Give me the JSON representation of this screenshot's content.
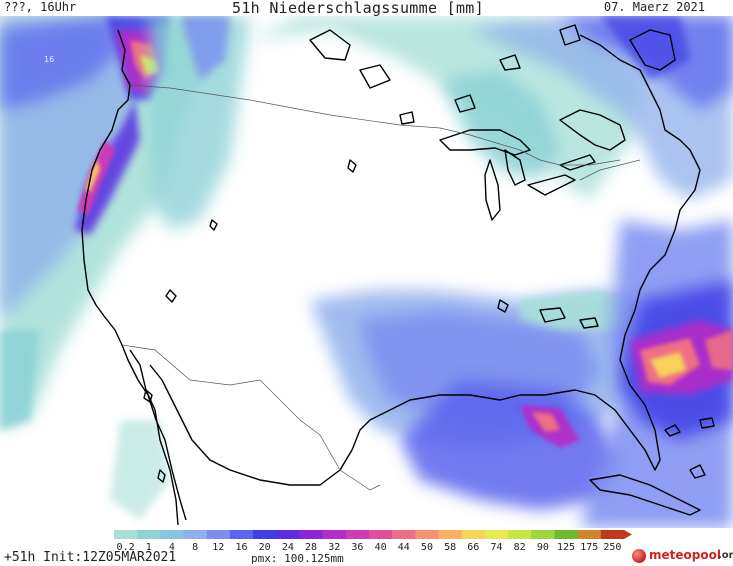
{
  "header": {
    "left": "???, 16Uhr",
    "title": "51h Niederschlagssumme [mm]",
    "date": "07. Maerz 2021"
  },
  "map": {
    "region": "North America",
    "ocean_label": "16"
  },
  "legend": {
    "ticks": [
      "0.2",
      "1",
      "4",
      "8",
      "12",
      "16",
      "20",
      "24",
      "28",
      "32",
      "36",
      "40",
      "44",
      "50",
      "58",
      "66",
      "74",
      "82",
      "90",
      "125",
      "175",
      "250"
    ],
    "colors": [
      "#a8e0d8",
      "#8fd3d6",
      "#89c4e3",
      "#8fb0ec",
      "#7b8ef0",
      "#5a64ee",
      "#3f3fe6",
      "#5a2ee0",
      "#8f24d8",
      "#b52ac8",
      "#cf3bb5",
      "#e04f9c",
      "#ee6f85",
      "#f79172",
      "#fbb163",
      "#f7d35a",
      "#e9e94e",
      "#c6e443",
      "#9ed63b",
      "#6fb92f",
      "#d0842c",
      "#c0391e"
    ]
  },
  "footer": {
    "run_info": "+51h Init:12Z05MAR2021",
    "pmx": "pmx: 100.125mm"
  },
  "logo": {
    "brand": "meteopool",
    "tld": ".org"
  }
}
